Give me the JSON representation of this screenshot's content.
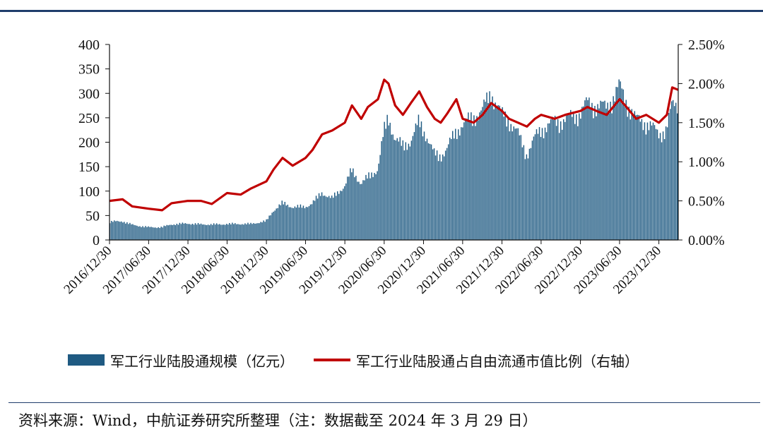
{
  "chart_data": {
    "type": "bar+line",
    "left_axis": {
      "min": 0,
      "max": 400,
      "ticks": [
        "0",
        "50",
        "100",
        "150",
        "200",
        "250",
        "300",
        "350",
        "400"
      ]
    },
    "right_axis": {
      "min": 0,
      "max": 2.5,
      "ticks": [
        "0.00%",
        "0.50%",
        "1.00%",
        "1.50%",
        "2.00%",
        "2.50%"
      ]
    },
    "x_tick_labels": [
      "2016/12/30",
      "2017/06/30",
      "2017/12/30",
      "2018/06/30",
      "2018/12/30",
      "2019/06/30",
      "2019/12/30",
      "2020/06/30",
      "2020/12/30",
      "2021/06/30",
      "2021/12/30",
      "2022/06/30",
      "2022/12/30",
      "2023/06/30",
      "2023/12/30"
    ],
    "x_range": [
      "2016-12-30",
      "2024-03-29"
    ],
    "series": [
      {
        "name": "军工行业陆股通规模（亿元）",
        "type": "bar",
        "axis": "left",
        "color": "#1f5a82",
        "points": [
          [
            "2016-12-30",
            38
          ],
          [
            "2017-03-01",
            40
          ],
          [
            "2017-04-15",
            32
          ],
          [
            "2017-06-30",
            27
          ],
          [
            "2017-09-01",
            27
          ],
          [
            "2017-10-15",
            33
          ],
          [
            "2017-12-30",
            35
          ],
          [
            "2018-03-01",
            33
          ],
          [
            "2018-06-01",
            33
          ],
          [
            "2018-06-30",
            34
          ],
          [
            "2018-09-01",
            34
          ],
          [
            "2018-10-20",
            34
          ],
          [
            "2018-12-30",
            40
          ],
          [
            "2019-02-01",
            62
          ],
          [
            "2019-03-15",
            78
          ],
          [
            "2019-05-01",
            70
          ],
          [
            "2019-06-30",
            70
          ],
          [
            "2019-08-01",
            78
          ],
          [
            "2019-09-15",
            100
          ],
          [
            "2019-11-01",
            88
          ],
          [
            "2019-12-30",
            115
          ],
          [
            "2020-02-01",
            148
          ],
          [
            "2020-03-15",
            120
          ],
          [
            "2020-04-15",
            132
          ],
          [
            "2020-06-01",
            150
          ],
          [
            "2020-06-30",
            230
          ],
          [
            "2020-07-20",
            260
          ],
          [
            "2020-08-20",
            215
          ],
          [
            "2020-09-25",
            198
          ],
          [
            "2020-11-01",
            210
          ],
          [
            "2020-12-10",
            250
          ],
          [
            "2021-01-15",
            220
          ],
          [
            "2021-02-20",
            180
          ],
          [
            "2021-03-20",
            178
          ],
          [
            "2021-04-20",
            195
          ],
          [
            "2021-06-01",
            230
          ],
          [
            "2021-06-30",
            245
          ],
          [
            "2021-08-20",
            260
          ],
          [
            "2021-10-01",
            275
          ],
          [
            "2021-11-10",
            312
          ],
          [
            "2021-12-30",
            265
          ],
          [
            "2022-02-01",
            255
          ],
          [
            "2022-03-15",
            225
          ],
          [
            "2022-04-25",
            182
          ],
          [
            "2022-06-01",
            215
          ],
          [
            "2022-06-30",
            235
          ],
          [
            "2022-09-01",
            250
          ],
          [
            "2022-10-20",
            255
          ],
          [
            "2022-12-30",
            270
          ],
          [
            "2023-02-01",
            290
          ],
          [
            "2023-03-15",
            285
          ],
          [
            "2023-05-01",
            280
          ],
          [
            "2023-06-30",
            325
          ],
          [
            "2023-08-01",
            295
          ],
          [
            "2023-09-15",
            255
          ],
          [
            "2023-11-01",
            250
          ],
          [
            "2023-12-30",
            225
          ],
          [
            "2024-02-05",
            235
          ],
          [
            "2024-03-01",
            285
          ],
          [
            "2024-03-29",
            290
          ]
        ]
      },
      {
        "name": "军工行业陆股通占自由流通市值比例（右轴）",
        "type": "line",
        "axis": "right",
        "color": "#c00000",
        "points": [
          [
            "2016-12-30",
            0.5
          ],
          [
            "2017-03-01",
            0.52
          ],
          [
            "2017-04-15",
            0.43
          ],
          [
            "2017-06-30",
            0.4
          ],
          [
            "2017-09-01",
            0.38
          ],
          [
            "2017-10-15",
            0.47
          ],
          [
            "2017-12-30",
            0.5
          ],
          [
            "2018-03-01",
            0.5
          ],
          [
            "2018-04-20",
            0.46
          ],
          [
            "2018-06-30",
            0.6
          ],
          [
            "2018-09-01",
            0.58
          ],
          [
            "2018-10-20",
            0.66
          ],
          [
            "2018-12-30",
            0.75
          ],
          [
            "2019-02-01",
            0.9
          ],
          [
            "2019-03-15",
            1.05
          ],
          [
            "2019-05-01",
            0.95
          ],
          [
            "2019-06-30",
            1.05
          ],
          [
            "2019-08-01",
            1.15
          ],
          [
            "2019-09-15",
            1.35
          ],
          [
            "2019-11-01",
            1.4
          ],
          [
            "2019-12-30",
            1.5
          ],
          [
            "2020-02-01",
            1.72
          ],
          [
            "2020-03-15",
            1.55
          ],
          [
            "2020-04-15",
            1.7
          ],
          [
            "2020-06-01",
            1.8
          ],
          [
            "2020-06-30",
            2.05
          ],
          [
            "2020-07-20",
            2.0
          ],
          [
            "2020-08-20",
            1.72
          ],
          [
            "2020-09-25",
            1.6
          ],
          [
            "2020-11-01",
            1.75
          ],
          [
            "2020-12-10",
            1.9
          ],
          [
            "2021-01-15",
            1.7
          ],
          [
            "2021-02-20",
            1.55
          ],
          [
            "2021-03-20",
            1.5
          ],
          [
            "2021-04-20",
            1.62
          ],
          [
            "2021-06-01",
            1.8
          ],
          [
            "2021-06-30",
            1.55
          ],
          [
            "2021-08-20",
            1.5
          ],
          [
            "2021-10-01",
            1.6
          ],
          [
            "2021-11-10",
            1.75
          ],
          [
            "2021-12-30",
            1.65
          ],
          [
            "2022-02-01",
            1.55
          ],
          [
            "2022-03-15",
            1.5
          ],
          [
            "2022-04-25",
            1.45
          ],
          [
            "2022-06-01",
            1.55
          ],
          [
            "2022-06-30",
            1.6
          ],
          [
            "2022-09-01",
            1.55
          ],
          [
            "2022-10-20",
            1.6
          ],
          [
            "2022-12-30",
            1.65
          ],
          [
            "2023-02-01",
            1.7
          ],
          [
            "2023-03-15",
            1.65
          ],
          [
            "2023-05-01",
            1.6
          ],
          [
            "2023-06-30",
            1.8
          ],
          [
            "2023-08-01",
            1.7
          ],
          [
            "2023-09-15",
            1.55
          ],
          [
            "2023-11-01",
            1.6
          ],
          [
            "2023-12-30",
            1.5
          ],
          [
            "2024-02-05",
            1.6
          ],
          [
            "2024-03-01",
            1.95
          ],
          [
            "2024-03-29",
            1.92
          ]
        ]
      }
    ],
    "legend": "bottom"
  },
  "source_note": "资料来源：Wind，中航证券研究所整理（注：数据截至 2024 年 3 月 29 日）"
}
